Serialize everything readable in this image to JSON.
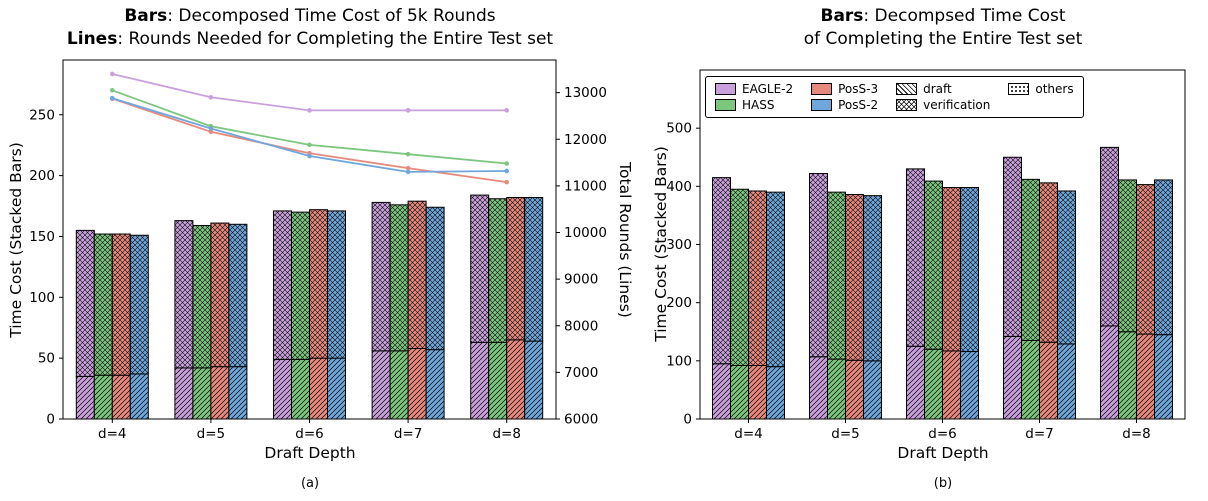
{
  "figure": {
    "background": "#ffffff"
  },
  "chart_data": [
    {
      "id": "a",
      "type": "bar+line",
      "title_bold_1": "Bars",
      "title_rest_1": ": Decomposed Time Cost of 5k Rounds",
      "title_bold_2": "Lines",
      "title_rest_2": ": Rounds Needed for Completing the Entire Test set",
      "xlabel": "Draft Depth",
      "ylabel_left": "Time Cost (Stacked Bars)",
      "ylabel_right": "Total Rounds (Lines)",
      "caption": "(a)",
      "categories": [
        "d=4",
        "d=5",
        "d=6",
        "d=7",
        "d=8"
      ],
      "ylim_left": [
        0,
        295
      ],
      "yticks_left": [
        0,
        50,
        100,
        150,
        200,
        250
      ],
      "ylim_right": [
        6000,
        13700
      ],
      "yticks_right": [
        6000,
        7000,
        8000,
        9000,
        10000,
        11000,
        12000,
        13000
      ],
      "grid": false,
      "bar_series": [
        {
          "name": "EAGLE-2",
          "color": "#C9A0DC",
          "draft": [
            35,
            42,
            49,
            56,
            63
          ],
          "verification": [
            120,
            121,
            122,
            122,
            121
          ]
        },
        {
          "name": "HASS",
          "color": "#7CC67E",
          "draft": [
            36,
            42,
            49,
            56,
            63
          ],
          "verification": [
            116,
            117,
            121,
            120,
            118
          ]
        },
        {
          "name": "PosS-3",
          "color": "#E8897E",
          "draft": [
            36,
            43,
            50,
            58,
            65
          ],
          "verification": [
            116,
            118,
            122,
            121,
            117
          ]
        },
        {
          "name": "PosS-2",
          "color": "#6FA7DB",
          "draft": [
            37,
            43,
            50,
            57,
            64
          ],
          "verification": [
            114,
            117,
            121,
            117,
            118
          ]
        }
      ],
      "line_series": [
        {
          "name": "EAGLE-2",
          "color": "#C9A0DC",
          "values": [
            13400,
            12900,
            12620,
            12620,
            12620
          ]
        },
        {
          "name": "HASS",
          "color": "#7CC67E",
          "values": [
            13050,
            12280,
            11880,
            11680,
            11480
          ]
        },
        {
          "name": "PosS-3",
          "color": "#E8897E",
          "values": [
            12870,
            12160,
            11700,
            11380,
            11080
          ]
        },
        {
          "name": "PosS-2",
          "color": "#6FA7DB",
          "values": [
            12880,
            12230,
            11640,
            11300,
            11320
          ]
        }
      ]
    },
    {
      "id": "b",
      "type": "bar",
      "title_bold_1": "Bars",
      "title_rest_1": ": Decompsed Time Cost",
      "title_bold_2": "",
      "title_rest_2": "of Completing the Entire Test set",
      "xlabel": "Draft Depth",
      "ylabel_left": "Time Cost (Stacked Bars)",
      "caption": "(b)",
      "categories": [
        "d=4",
        "d=5",
        "d=6",
        "d=7",
        "d=8"
      ],
      "ylim_left": [
        0,
        600
      ],
      "yticks_left": [
        0,
        100,
        200,
        300,
        400,
        500
      ],
      "grid": false,
      "bar_series": [
        {
          "name": "EAGLE-2",
          "color": "#C9A0DC",
          "draft": [
            95,
            107,
            125,
            142,
            160
          ],
          "verification": [
            320,
            315,
            305,
            308,
            307
          ]
        },
        {
          "name": "HASS",
          "color": "#7CC67E",
          "draft": [
            92,
            103,
            120,
            135,
            150
          ],
          "verification": [
            303,
            287,
            289,
            277,
            261
          ]
        },
        {
          "name": "PosS-3",
          "color": "#E8897E",
          "draft": [
            92,
            101,
            117,
            132,
            146
          ],
          "verification": [
            300,
            285,
            281,
            274,
            257
          ]
        },
        {
          "name": "PosS-2",
          "color": "#6FA7DB",
          "draft": [
            90,
            100,
            116,
            129,
            145
          ],
          "verification": [
            300,
            284,
            282,
            263,
            266
          ]
        }
      ],
      "legend": [
        {
          "label": "EAGLE-2",
          "swatch": "color",
          "color": "#C9A0DC"
        },
        {
          "label": "HASS",
          "swatch": "color",
          "color": "#7CC67E"
        },
        {
          "label": "PosS-3",
          "swatch": "color",
          "color": "#E8897E"
        },
        {
          "label": "PosS-2",
          "swatch": "color",
          "color": "#6FA7DB"
        },
        {
          "label": "draft",
          "swatch": "hatch",
          "hatch": "diag"
        },
        {
          "label": "verification",
          "swatch": "hatch",
          "hatch": "cross"
        },
        {
          "label": "others",
          "swatch": "hatch",
          "hatch": "dots"
        }
      ]
    }
  ]
}
